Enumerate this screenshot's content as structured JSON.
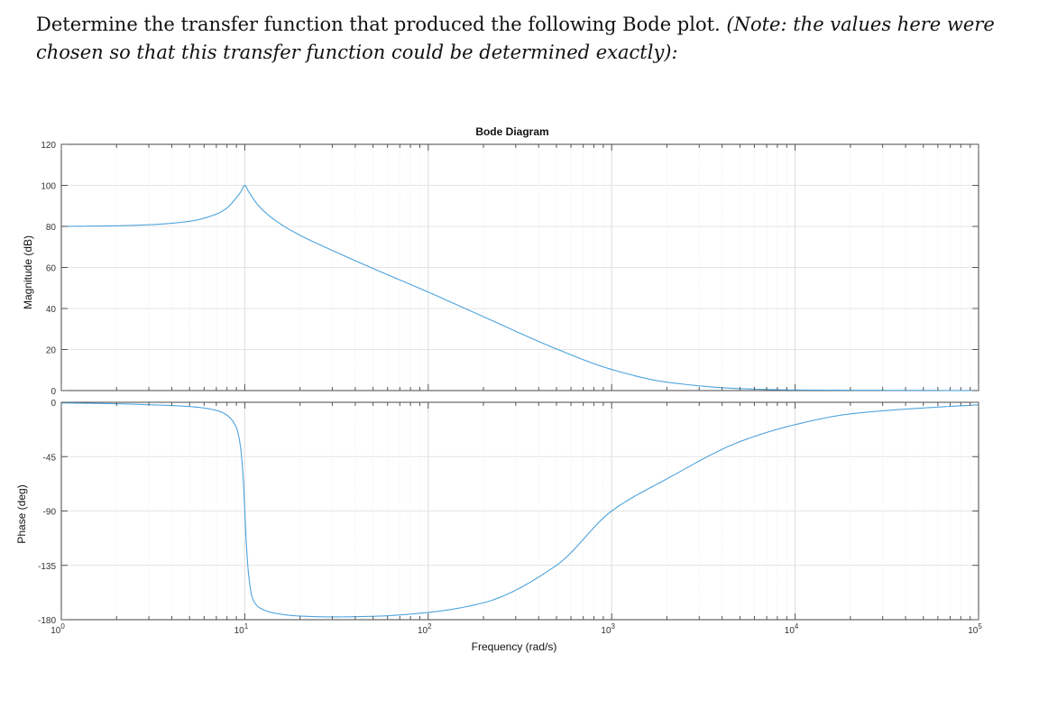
{
  "question": {
    "text": "Determine the transfer function that produced the following Bode plot.",
    "note": "(Note: the values here were chosen so that this transfer function could be determined exactly):"
  },
  "chart_data": [
    {
      "type": "line",
      "title": "Bode Diagram",
      "xlabel": "Frequency (rad/s)",
      "ylabel": "Magnitude (dB)",
      "xscale": "log",
      "xlim": [
        1,
        100000
      ],
      "ylim": [
        0,
        120
      ],
      "xticks": [
        1,
        10,
        100,
        1000,
        10000,
        100000
      ],
      "xtick_labels": [
        {
          "base": "10",
          "exp": "0"
        },
        {
          "base": "10",
          "exp": "1"
        },
        {
          "base": "10",
          "exp": "2"
        },
        {
          "base": "10",
          "exp": "3"
        },
        {
          "base": "10",
          "exp": "4"
        },
        {
          "base": "10",
          "exp": "5"
        }
      ],
      "yticks": [
        "120",
        "100",
        "80",
        "60",
        "40",
        "20",
        "0"
      ],
      "grid": true,
      "color": "#4da3dd",
      "series": [
        {
          "x": [
            1,
            2,
            3,
            5,
            7,
            8,
            9,
            9.5,
            10,
            10.5,
            12,
            15,
            20,
            30,
            50,
            100,
            200,
            500,
            1000,
            2000,
            5000,
            10000,
            100000
          ],
          "y": [
            80,
            80.3,
            80.8,
            82.5,
            86,
            89,
            94,
            96.8,
            100,
            96.9,
            89.7,
            82.3,
            75.7,
            68.3,
            59.5,
            48,
            36,
            20.3,
            10.3,
            4.1,
            0.96,
            0.3,
            0
          ]
        }
      ]
    },
    {
      "type": "line",
      "ylabel": "Phase (deg)",
      "xscale": "log",
      "xlim": [
        1,
        100000
      ],
      "ylim": [
        -180,
        0
      ],
      "xticks": [
        1,
        10,
        100,
        1000,
        10000,
        100000
      ],
      "yticks": [
        "0",
        "-45",
        "-90",
        "-135",
        "-180"
      ],
      "ytick_values": [
        0,
        -45,
        -90,
        -135,
        -180
      ],
      "grid": true,
      "color": "#4da3dd",
      "series": [
        {
          "x": [
            1,
            2,
            3,
            5,
            7,
            8,
            9,
            9.5,
            9.8,
            10,
            10.2,
            10.5,
            11,
            12,
            15,
            20,
            30,
            50,
            100,
            200,
            500,
            1000,
            2000,
            5000,
            10000,
            20000,
            50000,
            100000
          ],
          "y": [
            -0.5,
            -1.2,
            -2,
            -3.5,
            -6.7,
            -10.7,
            -21,
            -38,
            -63,
            -90,
            -117,
            -143,
            -162,
            -170,
            -175,
            -177,
            -177.7,
            -177.2,
            -174,
            -166,
            -135,
            -90,
            -63.4,
            -32.6,
            -18.5,
            -9.6,
            -4.7,
            -2.1
          ]
        }
      ]
    }
  ]
}
